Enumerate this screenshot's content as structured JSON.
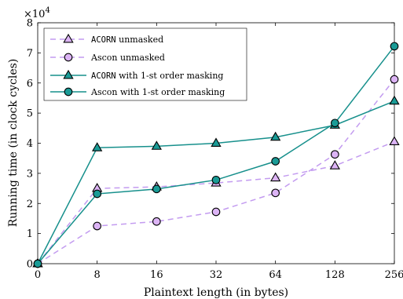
{
  "chart_data": {
    "type": "line",
    "xlabel": "Plaintext length (in bytes)",
    "ylabel": "Running time (in clock cycles)",
    "y_multiplier": "×10",
    "y_exponent": "4",
    "x_categories": [
      "0",
      "8",
      "16",
      "32",
      "64",
      "128",
      "256"
    ],
    "y_ticks": [
      "0",
      "1",
      "2",
      "3",
      "4",
      "5",
      "6",
      "7",
      "8"
    ],
    "ylim": [
      0,
      80000
    ],
    "grid": false,
    "legend_placement": "top-left",
    "series": [
      {
        "name": "ACORN unmasked",
        "name_mono": "ACORN",
        "name_rest": " unmasked",
        "marker": "triangle",
        "line_style": "dashed",
        "line_color": "#c39bf0",
        "marker_fill": "#dcb4f5",
        "values": [
          0,
          25000,
          25500,
          26800,
          28500,
          32500,
          40500
        ]
      },
      {
        "name": "Ascon unmasked",
        "name_mono": "",
        "name_rest": "Ascon unmasked",
        "marker": "circle",
        "line_style": "dashed",
        "line_color": "#c39bf0",
        "marker_fill": "#dcb4f5",
        "values": [
          0,
          12500,
          14000,
          17200,
          23500,
          36300,
          61200
        ]
      },
      {
        "name": "ACORN with 1-st order masking",
        "name_mono": "ACORN",
        "name_rest": " with 1-st order masking",
        "marker": "triangle",
        "line_style": "solid",
        "line_color": "#17908c",
        "marker_fill": "#1a9b96",
        "values": [
          0,
          38500,
          39000,
          40000,
          42000,
          46000,
          54000
        ]
      },
      {
        "name": "Ascon with 1-st order masking",
        "name_mono": "",
        "name_rest": "Ascon with 1-st order masking",
        "marker": "circle",
        "line_style": "solid",
        "line_color": "#17908c",
        "marker_fill": "#1a9b96",
        "values": [
          0,
          23200,
          24800,
          27800,
          34000,
          46700,
          72200
        ]
      }
    ]
  }
}
